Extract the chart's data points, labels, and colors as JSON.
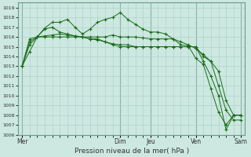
{
  "title": "Pression niveau de la mer( hPa )",
  "bg_color": "#cce8e0",
  "grid_color": "#aacec8",
  "line_color": "#1a6b1a",
  "vline_color": "#6a9a8a",
  "ylim": [
    1006,
    1019.5
  ],
  "yticks": [
    1006,
    1007,
    1008,
    1009,
    1010,
    1011,
    1012,
    1013,
    1014,
    1015,
    1016,
    1017,
    1018,
    1019
  ],
  "day_labels": [
    "Mer",
    "Dim",
    "Jeu",
    "Ven",
    "Sam"
  ],
  "day_positions": [
    0,
    13,
    17,
    23,
    29
  ],
  "series": [
    [
      1013.0,
      1014.5,
      1016.0,
      1016.9,
      1017.5,
      1017.5,
      1017.8,
      1017.0,
      1016.3,
      1016.8,
      1017.5,
      1017.8,
      1018.0,
      1018.5,
      1017.8,
      1017.3,
      1016.8,
      1016.5,
      1016.5,
      1016.3,
      1015.8,
      1015.2,
      1015.1,
      1013.8,
      1013.2,
      1010.7,
      1008.3,
      1007.0,
      1008.0,
      1008.0
    ],
    [
      1013.0,
      1015.2,
      1016.0,
      1016.1,
      1016.2,
      1016.3,
      1016.2,
      1016.1,
      1016.0,
      1016.0,
      1016.0,
      1016.0,
      1016.2,
      1016.0,
      1016.0,
      1016.0,
      1015.9,
      1015.8,
      1015.8,
      1015.8,
      1015.8,
      1015.5,
      1015.2,
      1014.8,
      1014.2,
      1013.5,
      1012.5,
      1009.5,
      1008.0,
      1008.0
    ],
    [
      1013.0,
      1015.5,
      1016.0,
      1016.8,
      1017.0,
      1016.5,
      1016.3,
      1016.1,
      1016.0,
      1015.8,
      1015.7,
      1015.5,
      1015.3,
      1015.2,
      1015.2,
      1015.0,
      1015.0,
      1015.0,
      1015.0,
      1015.0,
      1015.0,
      1015.0,
      1015.0,
      1015.0,
      1014.0,
      1013.5,
      1011.0,
      1008.5,
      1007.5,
      1007.5
    ],
    [
      1013.0,
      1015.8,
      1016.0,
      1016.0,
      1016.0,
      1016.0,
      1016.0,
      1016.0,
      1016.0,
      1015.8,
      1015.8,
      1015.5,
      1015.2,
      1015.0,
      1015.0,
      1015.0,
      1015.0,
      1015.0,
      1015.0,
      1015.0,
      1015.0,
      1015.0,
      1015.0,
      1015.0,
      1013.5,
      1012.0,
      1010.0,
      1006.5,
      1008.0,
      1008.0
    ]
  ]
}
